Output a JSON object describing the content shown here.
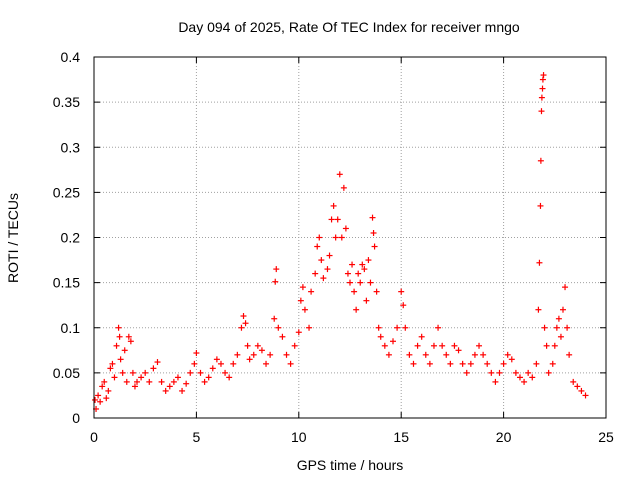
{
  "chart_data": {
    "type": "scatter",
    "title": "Day 094 of 2025, Rate Of TEC Index for receiver mngo",
    "xlabel": "GPS time / hours",
    "ylabel": "ROTI / TECUs",
    "xlim": [
      0,
      25
    ],
    "ylim": [
      0,
      0.4
    ],
    "xticks": [
      0,
      5,
      10,
      15,
      20,
      25
    ],
    "xtick_labels": [
      "0",
      "5",
      "10",
      "15",
      "20",
      "25"
    ],
    "yticks": [
      0,
      0.05,
      0.1,
      0.15,
      0.2,
      0.25,
      0.3,
      0.35,
      0.4
    ],
    "ytick_labels": [
      "0",
      "0.05",
      "0.1",
      "0.15",
      "0.2",
      "0.25",
      "0.3",
      "0.35",
      "0.4"
    ],
    "grid": true,
    "marker": "+",
    "marker_color": "#ff0000",
    "series": [
      {
        "name": "ROTI",
        "points": [
          [
            0.05,
            0.02
          ],
          [
            0.1,
            0.01
          ],
          [
            0.2,
            0.025
          ],
          [
            0.3,
            0.018
          ],
          [
            0.4,
            0.035
          ],
          [
            0.5,
            0.04
          ],
          [
            0.6,
            0.022
          ],
          [
            0.7,
            0.03
          ],
          [
            0.8,
            0.055
          ],
          [
            0.9,
            0.06
          ],
          [
            1.0,
            0.045
          ],
          [
            1.1,
            0.08
          ],
          [
            1.2,
            0.1
          ],
          [
            1.25,
            0.09
          ],
          [
            1.3,
            0.065
          ],
          [
            1.4,
            0.05
          ],
          [
            1.5,
            0.075
          ],
          [
            1.6,
            0.04
          ],
          [
            1.7,
            0.09
          ],
          [
            1.8,
            0.085
          ],
          [
            1.9,
            0.05
          ],
          [
            2.0,
            0.035
          ],
          [
            2.1,
            0.04
          ],
          [
            2.3,
            0.045
          ],
          [
            2.5,
            0.05
          ],
          [
            2.7,
            0.04
          ],
          [
            2.9,
            0.055
          ],
          [
            3.1,
            0.062
          ],
          [
            3.3,
            0.04
          ],
          [
            3.5,
            0.03
          ],
          [
            3.7,
            0.035
          ],
          [
            3.9,
            0.04
          ],
          [
            4.1,
            0.045
          ],
          [
            4.3,
            0.03
          ],
          [
            4.5,
            0.038
          ],
          [
            4.7,
            0.05
          ],
          [
            4.9,
            0.06
          ],
          [
            5.0,
            0.072
          ],
          [
            5.2,
            0.05
          ],
          [
            5.4,
            0.04
          ],
          [
            5.6,
            0.045
          ],
          [
            5.8,
            0.055
          ],
          [
            6.0,
            0.065
          ],
          [
            6.2,
            0.06
          ],
          [
            6.4,
            0.05
          ],
          [
            6.6,
            0.045
          ],
          [
            6.8,
            0.06
          ],
          [
            7.0,
            0.07
          ],
          [
            7.2,
            0.1
          ],
          [
            7.3,
            0.113
          ],
          [
            7.4,
            0.105
          ],
          [
            7.5,
            0.08
          ],
          [
            7.6,
            0.065
          ],
          [
            7.8,
            0.07
          ],
          [
            8.0,
            0.08
          ],
          [
            8.2,
            0.075
          ],
          [
            8.4,
            0.06
          ],
          [
            8.6,
            0.07
          ],
          [
            8.8,
            0.11
          ],
          [
            8.85,
            0.151
          ],
          [
            8.9,
            0.165
          ],
          [
            9.0,
            0.1
          ],
          [
            9.2,
            0.09
          ],
          [
            9.4,
            0.07
          ],
          [
            9.6,
            0.06
          ],
          [
            9.8,
            0.08
          ],
          [
            10.0,
            0.095
          ],
          [
            10.1,
            0.13
          ],
          [
            10.2,
            0.145
          ],
          [
            10.3,
            0.12
          ],
          [
            10.5,
            0.1
          ],
          [
            10.6,
            0.14
          ],
          [
            10.8,
            0.16
          ],
          [
            10.9,
            0.19
          ],
          [
            11.0,
            0.2
          ],
          [
            11.1,
            0.175
          ],
          [
            11.2,
            0.155
          ],
          [
            11.4,
            0.165
          ],
          [
            11.5,
            0.18
          ],
          [
            11.6,
            0.22
          ],
          [
            11.7,
            0.235
          ],
          [
            11.8,
            0.2
          ],
          [
            11.9,
            0.22
          ],
          [
            12.0,
            0.27
          ],
          [
            12.1,
            0.2
          ],
          [
            12.2,
            0.255
          ],
          [
            12.3,
            0.21
          ],
          [
            12.4,
            0.16
          ],
          [
            12.5,
            0.15
          ],
          [
            12.6,
            0.17
          ],
          [
            12.7,
            0.14
          ],
          [
            12.8,
            0.12
          ],
          [
            12.9,
            0.16
          ],
          [
            13.0,
            0.15
          ],
          [
            13.1,
            0.17
          ],
          [
            13.2,
            0.165
          ],
          [
            13.3,
            0.13
          ],
          [
            13.4,
            0.175
          ],
          [
            13.5,
            0.15
          ],
          [
            13.6,
            0.222
          ],
          [
            13.65,
            0.205
          ],
          [
            13.7,
            0.19
          ],
          [
            13.8,
            0.14
          ],
          [
            13.9,
            0.1
          ],
          [
            14.0,
            0.09
          ],
          [
            14.2,
            0.08
          ],
          [
            14.4,
            0.07
          ],
          [
            14.6,
            0.085
          ],
          [
            14.8,
            0.1
          ],
          [
            15.0,
            0.14
          ],
          [
            15.1,
            0.125
          ],
          [
            15.2,
            0.1
          ],
          [
            15.4,
            0.07
          ],
          [
            15.6,
            0.06
          ],
          [
            15.8,
            0.08
          ],
          [
            16.0,
            0.09
          ],
          [
            16.2,
            0.07
          ],
          [
            16.4,
            0.06
          ],
          [
            16.6,
            0.08
          ],
          [
            16.8,
            0.1
          ],
          [
            17.0,
            0.08
          ],
          [
            17.2,
            0.07
          ],
          [
            17.4,
            0.06
          ],
          [
            17.6,
            0.08
          ],
          [
            17.8,
            0.075
          ],
          [
            18.0,
            0.06
          ],
          [
            18.2,
            0.05
          ],
          [
            18.4,
            0.06
          ],
          [
            18.6,
            0.07
          ],
          [
            18.8,
            0.08
          ],
          [
            19.0,
            0.07
          ],
          [
            19.2,
            0.06
          ],
          [
            19.4,
            0.05
          ],
          [
            19.6,
            0.04
          ],
          [
            19.8,
            0.05
          ],
          [
            20.0,
            0.06
          ],
          [
            20.2,
            0.07
          ],
          [
            20.4,
            0.065
          ],
          [
            20.6,
            0.05
          ],
          [
            20.8,
            0.045
          ],
          [
            21.0,
            0.04
          ],
          [
            21.2,
            0.05
          ],
          [
            21.4,
            0.045
          ],
          [
            21.6,
            0.06
          ],
          [
            21.7,
            0.12
          ],
          [
            21.75,
            0.172
          ],
          [
            21.8,
            0.235
          ],
          [
            21.82,
            0.285
          ],
          [
            21.85,
            0.34
          ],
          [
            21.87,
            0.355
          ],
          [
            21.9,
            0.365
          ],
          [
            21.92,
            0.375
          ],
          [
            21.95,
            0.38
          ],
          [
            22.0,
            0.1
          ],
          [
            22.1,
            0.08
          ],
          [
            22.2,
            0.05
          ],
          [
            22.4,
            0.06
          ],
          [
            22.5,
            0.08
          ],
          [
            22.6,
            0.1
          ],
          [
            22.7,
            0.11
          ],
          [
            22.8,
            0.09
          ],
          [
            22.9,
            0.12
          ],
          [
            23.0,
            0.145
          ],
          [
            23.1,
            0.1
          ],
          [
            23.2,
            0.07
          ],
          [
            23.4,
            0.04
          ],
          [
            23.6,
            0.035
          ],
          [
            23.8,
            0.03
          ],
          [
            24.0,
            0.025
          ]
        ]
      }
    ]
  }
}
